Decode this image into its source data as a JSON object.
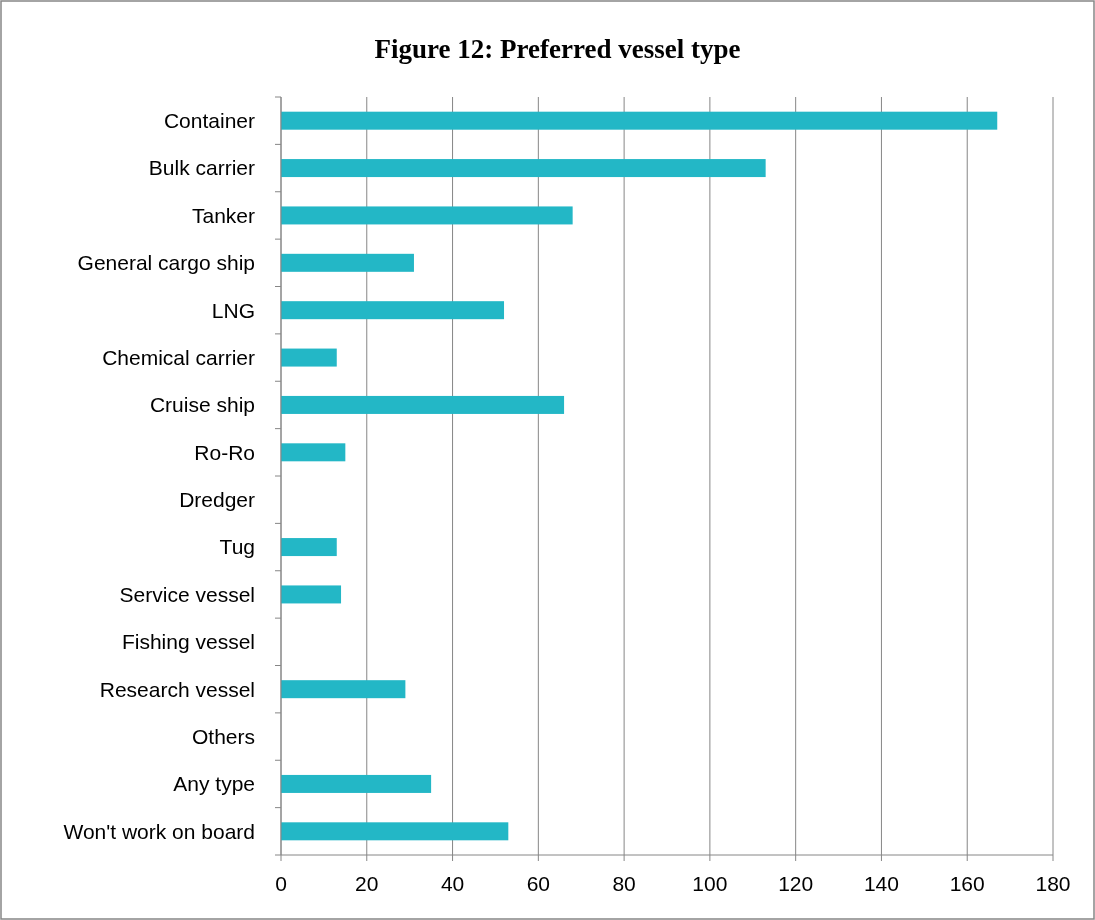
{
  "chart_data": {
    "type": "bar",
    "orientation": "horizontal",
    "title": "Figure 12: Preferred vessel type",
    "categories": [
      "Container",
      "Bulk carrier",
      "Tanker",
      "General cargo ship",
      "LNG",
      "Chemical carrier",
      "Cruise ship",
      "Ro-Ro",
      "Dredger",
      "Tug",
      "Service vessel",
      "Fishing vessel",
      "Research vessel",
      "Others",
      "Any type",
      "Won't work on board"
    ],
    "values": [
      167,
      113,
      68,
      31,
      52,
      13,
      66,
      15,
      0,
      13,
      14,
      0,
      29,
      0,
      35,
      53
    ],
    "color": "#23b7c6",
    "xlim": [
      0,
      180
    ],
    "xticks": [
      0,
      20,
      40,
      60,
      80,
      100,
      120,
      140,
      160,
      180
    ],
    "grid": "x"
  }
}
